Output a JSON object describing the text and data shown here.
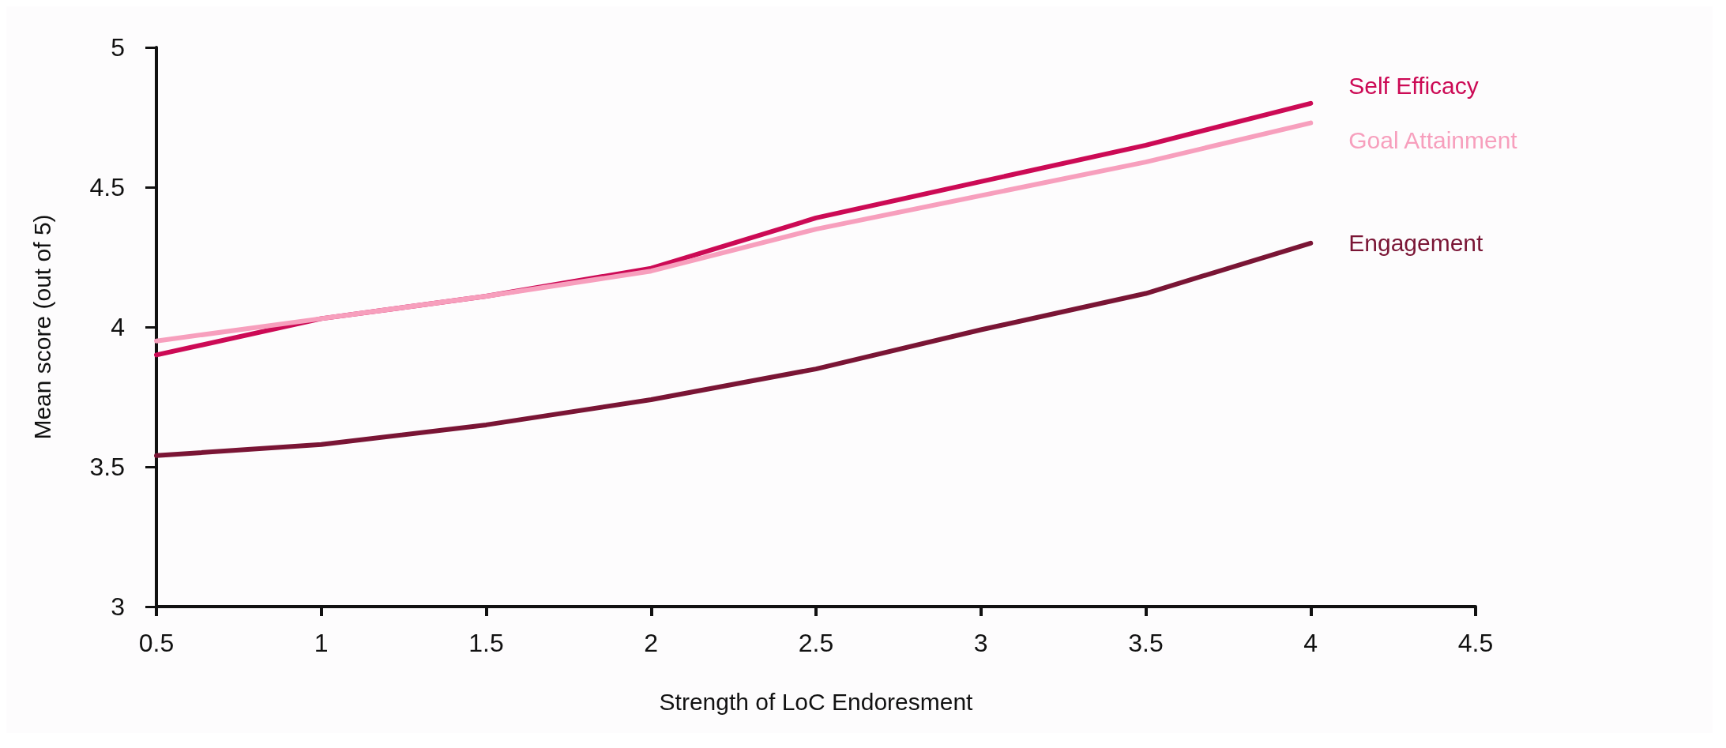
{
  "chart_data": {
    "type": "line",
    "xlabel": "Strength of LoC Endoresment",
    "ylabel": "Mean score (out of 5)",
    "x": [
      0.5,
      1,
      1.5,
      2,
      2.5,
      3,
      3.5,
      4
    ],
    "series": [
      {
        "name": "Self Efficacy",
        "color": "#cc0a55",
        "values": [
          3.9,
          4.03,
          4.11,
          4.21,
          4.39,
          4.52,
          4.65,
          4.8
        ]
      },
      {
        "name": "Goal Attainment",
        "color": "#f79fbd",
        "values": [
          3.95,
          4.03,
          4.11,
          4.2,
          4.35,
          4.47,
          4.59,
          4.73
        ]
      },
      {
        "name": "Engagement",
        "color": "#7a1535",
        "values": [
          3.54,
          3.58,
          3.65,
          3.74,
          3.85,
          3.99,
          4.12,
          4.3
        ]
      }
    ],
    "xlim": [
      0.5,
      4.5
    ],
    "xticks": [
      0.5,
      1,
      1.5,
      2,
      2.5,
      3,
      3.5,
      4,
      4.5
    ],
    "ylim": [
      3,
      5
    ],
    "yticks": [
      3,
      3.5,
      4,
      4.5,
      5
    ],
    "grid": false,
    "legend": false,
    "marker": "none",
    "line_style": "solid"
  }
}
